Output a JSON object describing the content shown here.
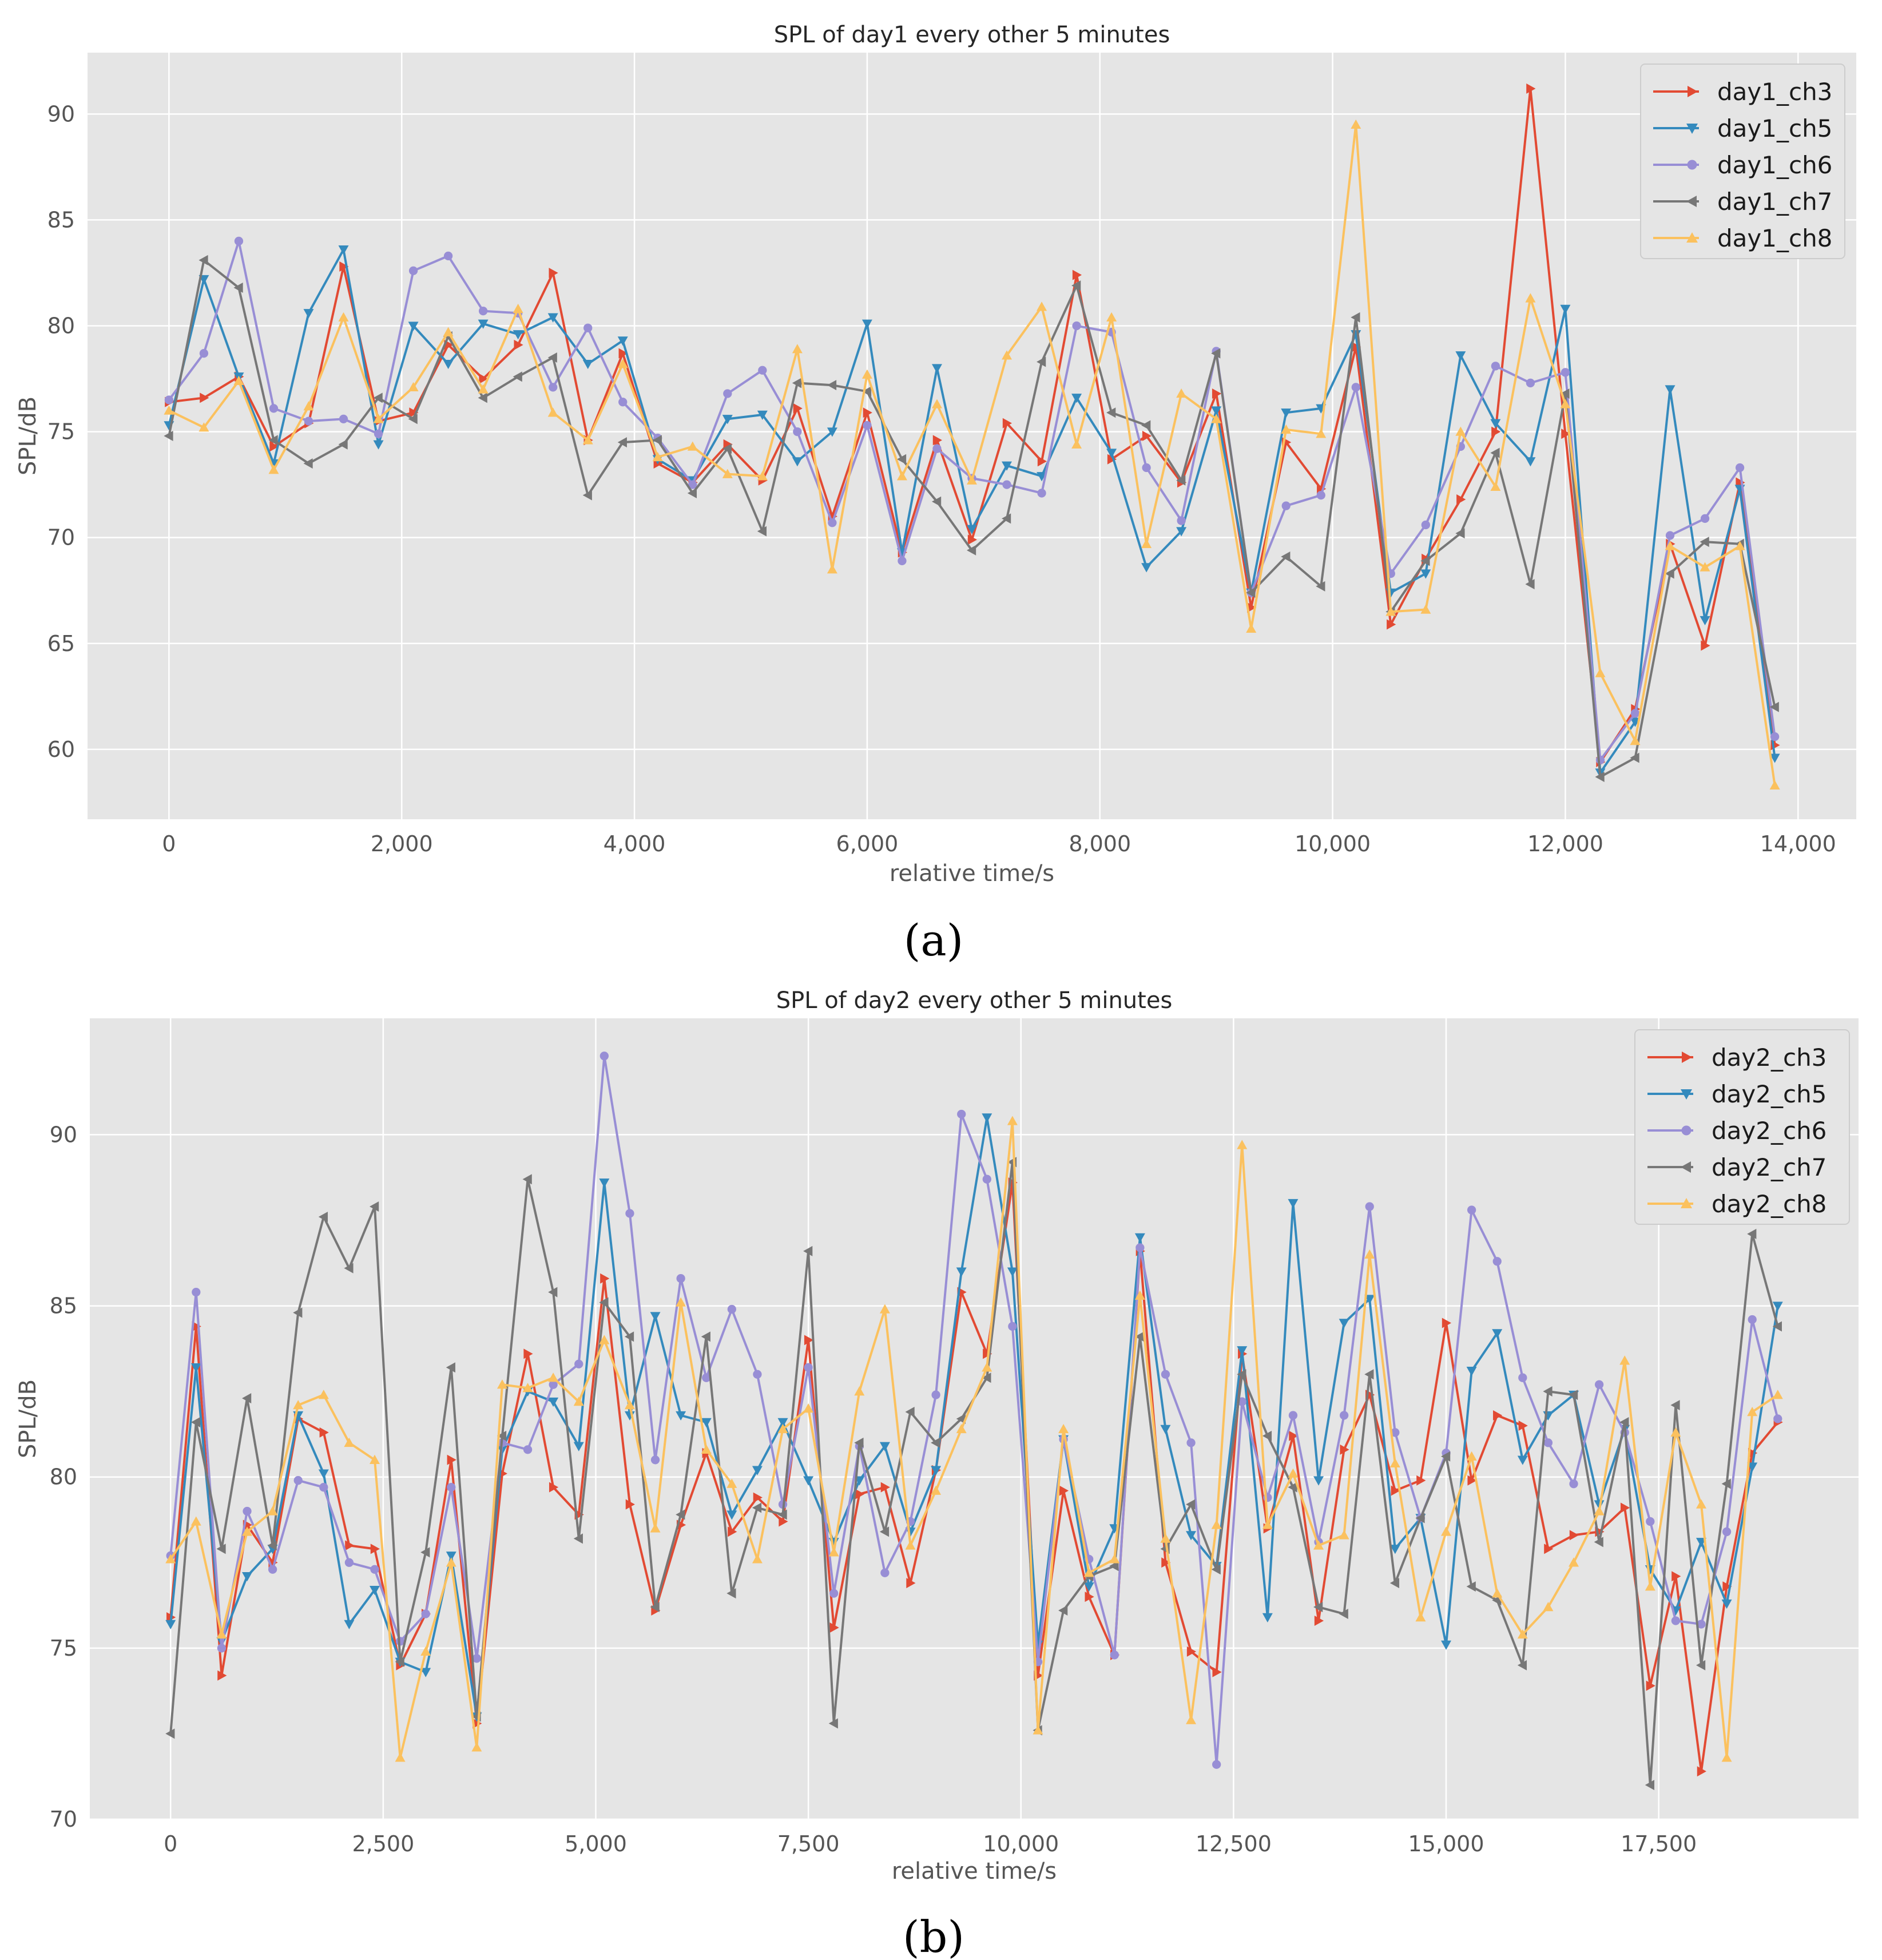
{
  "figure": {
    "panels": [
      "(a)",
      "(b)"
    ]
  },
  "chart_data": [
    {
      "type": "line",
      "title": "SPL of day1 every other 5 minutes",
      "xlabel": "relative time/s",
      "ylabel": "SPL/dB",
      "xlim": [
        -700,
        14500
      ],
      "ylim": [
        56.7,
        92.9
      ],
      "xticks": [
        0,
        2000,
        4000,
        6000,
        8000,
        10000,
        12000,
        14000
      ],
      "xtick_labels": [
        "0",
        "2,000",
        "4,000",
        "6,000",
        "8,000",
        "10,000",
        "12,000",
        "14,000"
      ],
      "yticks": [
        60,
        65,
        70,
        75,
        80,
        85,
        90
      ],
      "ytick_labels": [
        "60",
        "65",
        "70",
        "75",
        "80",
        "85",
        "90"
      ],
      "grid": true,
      "legend_position": "top-right",
      "x_step": 300,
      "series": [
        {
          "name": "day1_ch3",
          "color": "#E24A33",
          "marker": "triangle-right",
          "values": [
            76.4,
            76.6,
            77.6,
            74.3,
            75.4,
            82.8,
            75.5,
            75.9,
            79.1,
            77.5,
            79.1,
            82.5,
            74.6,
            78.7,
            73.5,
            72.6,
            74.4,
            72.7,
            76.1,
            71.0,
            75.9,
            69.3,
            74.6,
            69.9,
            75.4,
            73.6,
            82.4,
            73.7,
            74.8,
            72.6,
            76.8,
            66.7,
            74.5,
            72.3,
            79.0,
            65.9,
            69.0,
            71.8,
            75.0,
            91.2,
            74.9,
            59.4,
            61.9,
            69.7,
            64.9,
            72.6,
            60.2
          ]
        },
        {
          "name": "day1_ch5",
          "color": "#348ABD",
          "marker": "triangle-down",
          "values": [
            75.3,
            82.2,
            77.6,
            73.5,
            80.6,
            83.6,
            74.4,
            80.0,
            78.2,
            80.1,
            79.6,
            80.4,
            78.2,
            79.3,
            73.7,
            72.7,
            75.6,
            75.8,
            73.6,
            75.0,
            80.1,
            69.3,
            78.0,
            70.4,
            73.4,
            72.9,
            76.6,
            74.0,
            68.6,
            70.3,
            76.0,
            67.4,
            75.9,
            76.1,
            79.6,
            67.4,
            68.3,
            78.6,
            75.4,
            73.6,
            80.8,
            58.9,
            61.3,
            77.0,
            66.1,
            72.3,
            59.6
          ]
        },
        {
          "name": "day1_ch6",
          "color": "#988ED5",
          "marker": "circle",
          "values": [
            76.5,
            78.7,
            84.0,
            76.1,
            75.5,
            75.6,
            74.9,
            82.6,
            83.3,
            80.7,
            80.6,
            77.1,
            79.9,
            76.4,
            74.7,
            72.5,
            76.8,
            77.9,
            75.0,
            70.7,
            75.3,
            68.9,
            74.2,
            72.8,
            72.5,
            72.1,
            80.0,
            79.7,
            73.3,
            70.8,
            78.8,
            67.4,
            71.5,
            72.0,
            77.1,
            68.3,
            70.6,
            74.3,
            78.1,
            77.3,
            77.8,
            59.5,
            61.7,
            70.1,
            70.9,
            73.3,
            60.6
          ]
        },
        {
          "name": "day1_ch7",
          "color": "#777777",
          "marker": "triangle-left",
          "values": [
            74.8,
            83.1,
            81.8,
            74.6,
            73.5,
            74.4,
            76.6,
            75.6,
            79.5,
            76.6,
            77.6,
            78.5,
            72.0,
            74.5,
            74.6,
            72.1,
            74.2,
            70.3,
            77.3,
            77.2,
            76.9,
            73.7,
            71.7,
            69.4,
            70.9,
            78.3,
            81.9,
            75.9,
            75.3,
            72.7,
            78.7,
            67.4,
            69.1,
            67.7,
            80.4,
            66.5,
            68.9,
            70.2,
            74.0,
            67.8,
            76.8,
            58.7,
            59.6,
            68.3,
            69.8,
            69.7,
            62.0
          ]
        },
        {
          "name": "day1_ch8",
          "color": "#FBC15E",
          "marker": "triangle-up",
          "values": [
            76.0,
            75.2,
            77.4,
            73.2,
            76.2,
            80.4,
            75.6,
            77.1,
            79.7,
            77.0,
            80.8,
            75.9,
            74.6,
            78.2,
            73.8,
            74.3,
            73.0,
            72.9,
            78.9,
            68.5,
            77.7,
            72.9,
            76.3,
            72.7,
            78.6,
            80.9,
            74.4,
            80.4,
            69.7,
            76.8,
            75.6,
            65.7,
            75.1,
            74.9,
            89.5,
            66.5,
            66.6,
            75.0,
            72.4,
            81.3,
            76.3,
            63.6,
            60.4,
            69.6,
            68.6,
            69.6,
            58.3
          ]
        }
      ]
    },
    {
      "type": "line",
      "title": "SPL of day2 every other 5 minutes",
      "xlabel": "relative time/s",
      "ylabel": "SPL/dB",
      "xlim": [
        -950,
        19850
      ],
      "ylim": [
        70,
        93.4
      ],
      "xticks": [
        0,
        2500,
        5000,
        7500,
        10000,
        12500,
        15000,
        17500
      ],
      "xtick_labels": [
        "0",
        "2,500",
        "5,000",
        "7,500",
        "10,000",
        "12,500",
        "15,000",
        "17,500"
      ],
      "yticks": [
        70,
        75,
        80,
        85,
        90
      ],
      "ytick_labels": [
        "70",
        "75",
        "80",
        "85",
        "90"
      ],
      "grid": true,
      "legend_position": "top-right",
      "x_step": 300,
      "series": [
        {
          "name": "day2_ch3",
          "color": "#E24A33",
          "marker": "triangle-right",
          "values": [
            75.9,
            84.4,
            74.2,
            78.6,
            77.5,
            81.7,
            81.3,
            78.0,
            77.9,
            74.5,
            76.0,
            80.5,
            72.8,
            80.1,
            83.6,
            79.7,
            78.9,
            85.8,
            79.2,
            76.1,
            78.6,
            80.7,
            78.4,
            79.4,
            78.7,
            84.0,
            75.6,
            79.5,
            79.7,
            76.9,
            80.2,
            85.4,
            83.6,
            88.6,
            74.2,
            79.6,
            76.5,
            74.8,
            86.6,
            77.5,
            74.9,
            74.3,
            83.6,
            78.5,
            81.2,
            75.8,
            80.8,
            82.4,
            79.6,
            79.9,
            84.5,
            79.9,
            81.8,
            81.5,
            77.9,
            78.3,
            78.4,
            79.1,
            73.9,
            77.1,
            71.4,
            76.8,
            80.7,
            81.6
          ]
        },
        {
          "name": "day2_ch5",
          "color": "#348ABD",
          "marker": "triangle-down",
          "values": [
            75.7,
            83.2,
            75.2,
            77.1,
            77.9,
            81.8,
            80.1,
            75.7,
            76.7,
            74.6,
            74.3,
            77.7,
            73.0,
            80.8,
            82.5,
            82.2,
            80.9,
            88.6,
            81.8,
            84.7,
            81.8,
            81.6,
            78.9,
            80.2,
            81.6,
            79.9,
            78.1,
            79.9,
            80.9,
            78.4,
            80.2,
            86.0,
            90.5,
            86.0,
            75.1,
            81.1,
            76.8,
            78.5,
            87.0,
            81.4,
            78.3,
            77.4,
            83.7,
            75.9,
            88.0,
            79.9,
            84.5,
            85.2,
            77.9,
            78.8,
            75.1,
            83.1,
            84.2,
            80.5,
            81.8,
            82.4,
            79.2,
            81.4,
            77.3,
            76.1,
            78.1,
            76.3,
            80.3,
            85.0
          ]
        },
        {
          "name": "day2_ch6",
          "color": "#988ED5",
          "marker": "circle",
          "values": [
            77.7,
            85.4,
            75.0,
            79.0,
            77.3,
            79.9,
            79.7,
            77.5,
            77.3,
            75.2,
            76.0,
            79.7,
            74.7,
            81.0,
            80.8,
            82.7,
            83.3,
            92.3,
            87.7,
            80.5,
            85.8,
            82.9,
            84.9,
            83.0,
            79.2,
            83.2,
            76.6,
            80.9,
            77.2,
            78.7,
            82.4,
            90.6,
            88.7,
            84.4,
            74.6,
            81.1,
            77.6,
            74.8,
            86.7,
            83.0,
            81.0,
            71.6,
            82.2,
            79.4,
            81.8,
            78.1,
            81.8,
            87.9,
            81.3,
            78.8,
            80.7,
            87.8,
            86.3,
            82.9,
            81.0,
            79.8,
            82.7,
            81.3,
            78.7,
            75.8,
            75.7,
            78.4,
            84.6,
            81.7
          ]
        },
        {
          "name": "day2_ch7",
          "color": "#777777",
          "marker": "triangle-left",
          "values": [
            72.5,
            81.6,
            77.9,
            82.3,
            78.0,
            84.8,
            87.6,
            86.1,
            87.9,
            74.6,
            77.8,
            83.2,
            73.0,
            81.2,
            88.7,
            85.4,
            78.2,
            85.1,
            84.1,
            76.2,
            78.9,
            84.1,
            76.6,
            79.1,
            78.9,
            86.6,
            72.8,
            81.0,
            78.4,
            81.9,
            81.0,
            81.7,
            82.9,
            89.2,
            72.6,
            76.1,
            77.1,
            77.4,
            84.1,
            77.9,
            79.2,
            77.3,
            83.0,
            81.2,
            79.7,
            76.2,
            76.0,
            83.0,
            76.9,
            78.8,
            80.6,
            76.8,
            76.4,
            74.5,
            82.5,
            82.4,
            78.1,
            81.6,
            71.0,
            82.1,
            74.5,
            79.8,
            87.1,
            84.4
          ]
        },
        {
          "name": "day2_ch8",
          "color": "#FBC15E",
          "marker": "triangle-up",
          "values": [
            77.6,
            78.7,
            75.4,
            78.4,
            79.0,
            82.1,
            82.4,
            81.0,
            80.5,
            71.8,
            74.9,
            77.5,
            72.1,
            82.7,
            82.6,
            82.9,
            82.2,
            84.0,
            82.1,
            78.5,
            85.1,
            80.8,
            79.8,
            77.6,
            81.4,
            82.0,
            77.8,
            82.5,
            84.9,
            78.0,
            79.6,
            81.4,
            83.2,
            90.4,
            72.6,
            81.4,
            77.2,
            77.6,
            85.3,
            78.2,
            72.9,
            78.6,
            89.7,
            78.6,
            80.1,
            78.0,
            78.3,
            86.5,
            80.4,
            75.9,
            78.4,
            80.6,
            76.6,
            75.4,
            76.2,
            77.5,
            79.0,
            83.4,
            76.8,
            81.3,
            79.2,
            71.8,
            81.9,
            82.4
          ]
        }
      ]
    }
  ]
}
